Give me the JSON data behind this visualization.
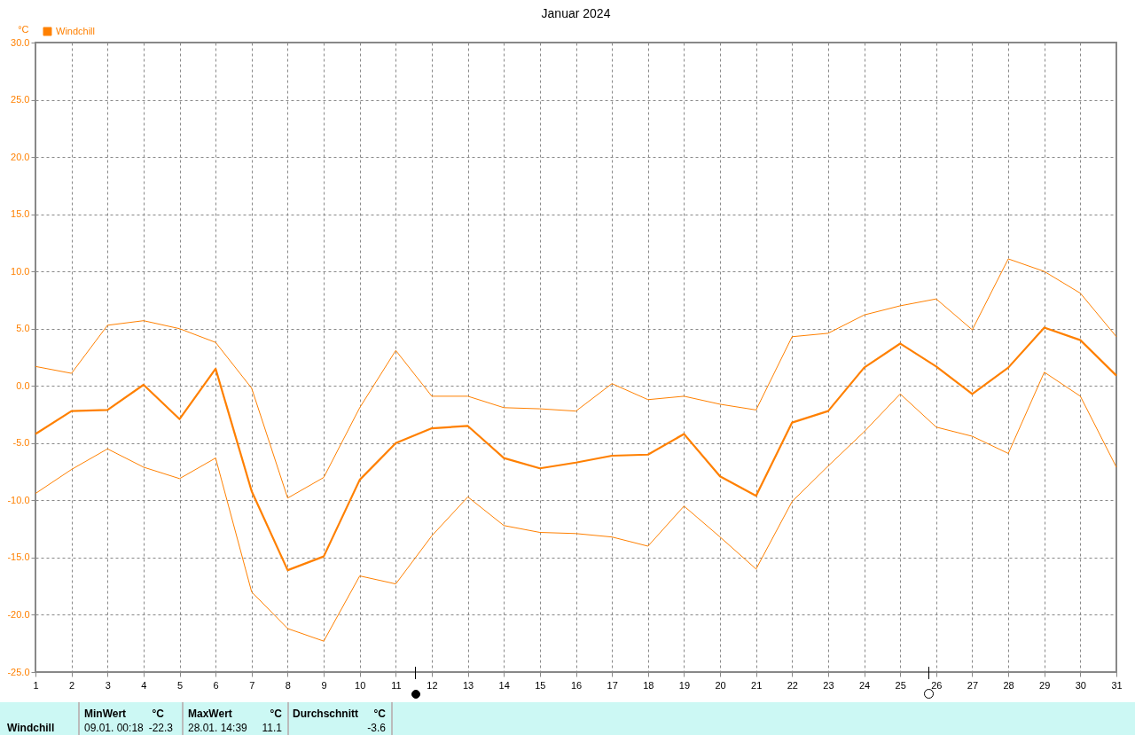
{
  "chart_data": {
    "type": "line",
    "title": "Januar 2024",
    "ylabel": "°C",
    "x": [
      1,
      2,
      3,
      4,
      5,
      6,
      7,
      8,
      9,
      10,
      11,
      12,
      13,
      14,
      15,
      16,
      17,
      18,
      19,
      20,
      21,
      22,
      23,
      24,
      25,
      26,
      27,
      28,
      29,
      30,
      31
    ],
    "series": [
      {
        "color": "#ff8000",
        "values": [
          1.7,
          1.1,
          5.3,
          5.7,
          5.0,
          3.8,
          -0.2,
          -9.8,
          -8.0,
          -1.9,
          3.1,
          -0.9,
          -0.9,
          -1.9,
          -2.0,
          -2.2,
          0.2,
          -1.2,
          -0.9,
          -1.6,
          -2.1,
          4.3,
          4.6,
          6.2,
          7.0,
          7.6,
          4.9,
          11.1,
          10.0,
          8.1,
          4.3
        ]
      },
      {
        "name": "Windchill",
        "color": "#ff8000",
        "values": [
          -4.2,
          -2.2,
          -2.1,
          0.1,
          -2.9,
          1.5,
          -9.2,
          -16.1,
          -14.9,
          -8.2,
          -5.0,
          -3.7,
          -3.5,
          -6.3,
          -7.2,
          -6.7,
          -6.1,
          -6.0,
          -4.2,
          -7.9,
          -9.6,
          -3.2,
          -2.2,
          1.6,
          3.7,
          1.7,
          -0.7,
          1.6,
          5.1,
          4.0,
          0.9
        ]
      },
      {
        "color": "#ff8000",
        "values": [
          -9.4,
          -7.3,
          -5.5,
          -7.1,
          -8.1,
          -6.3,
          -18.0,
          -21.2,
          -22.3,
          -16.6,
          -17.3,
          -13.1,
          -9.7,
          -12.2,
          -12.8,
          -12.9,
          -13.2,
          -14.0,
          -10.5,
          -13.2,
          -16.0,
          -10.1,
          -7.0,
          -4.0,
          -0.7,
          -3.6,
          -4.4,
          -5.9,
          1.2,
          -0.9,
          -7.1
        ]
      }
    ],
    "xlim": [
      1,
      31
    ],
    "xticks": [
      1,
      2,
      3,
      4,
      5,
      6,
      7,
      8,
      9,
      10,
      11,
      12,
      13,
      14,
      15,
      16,
      17,
      18,
      19,
      20,
      21,
      22,
      23,
      24,
      25,
      26,
      27,
      28,
      29,
      30,
      31
    ],
    "ylim": [
      -25,
      30
    ],
    "yticks": [
      {
        "value": -25,
        "label": "-25.0"
      },
      {
        "value": -20,
        "label": "-20.0"
      },
      {
        "value": -15,
        "label": "-15.0"
      },
      {
        "value": -10,
        "label": "-10.0"
      },
      {
        "value": -5,
        "label": "-5.0"
      },
      {
        "value": 0,
        "label": "0.0"
      },
      {
        "value": 5,
        "label": "5.0"
      },
      {
        "value": 10,
        "label": "10.0"
      },
      {
        "value": 15,
        "label": "15.0"
      },
      {
        "value": 20,
        "label": "20.0"
      },
      {
        "value": 25,
        "label": "25.0"
      },
      {
        "value": 30,
        "label": "30.0"
      }
    ],
    "grid": true,
    "legend": "top left",
    "marker": "none",
    "line_style": "solid",
    "annotations": [
      "Windchill",
      "MinWert",
      "°C",
      "09.01.  00:18",
      "-22.3",
      "MaxWert",
      "°C",
      "28.01.  14:39",
      "11.1",
      "Durchschnitt",
      "°C",
      "-3.6"
    ]
  }
}
